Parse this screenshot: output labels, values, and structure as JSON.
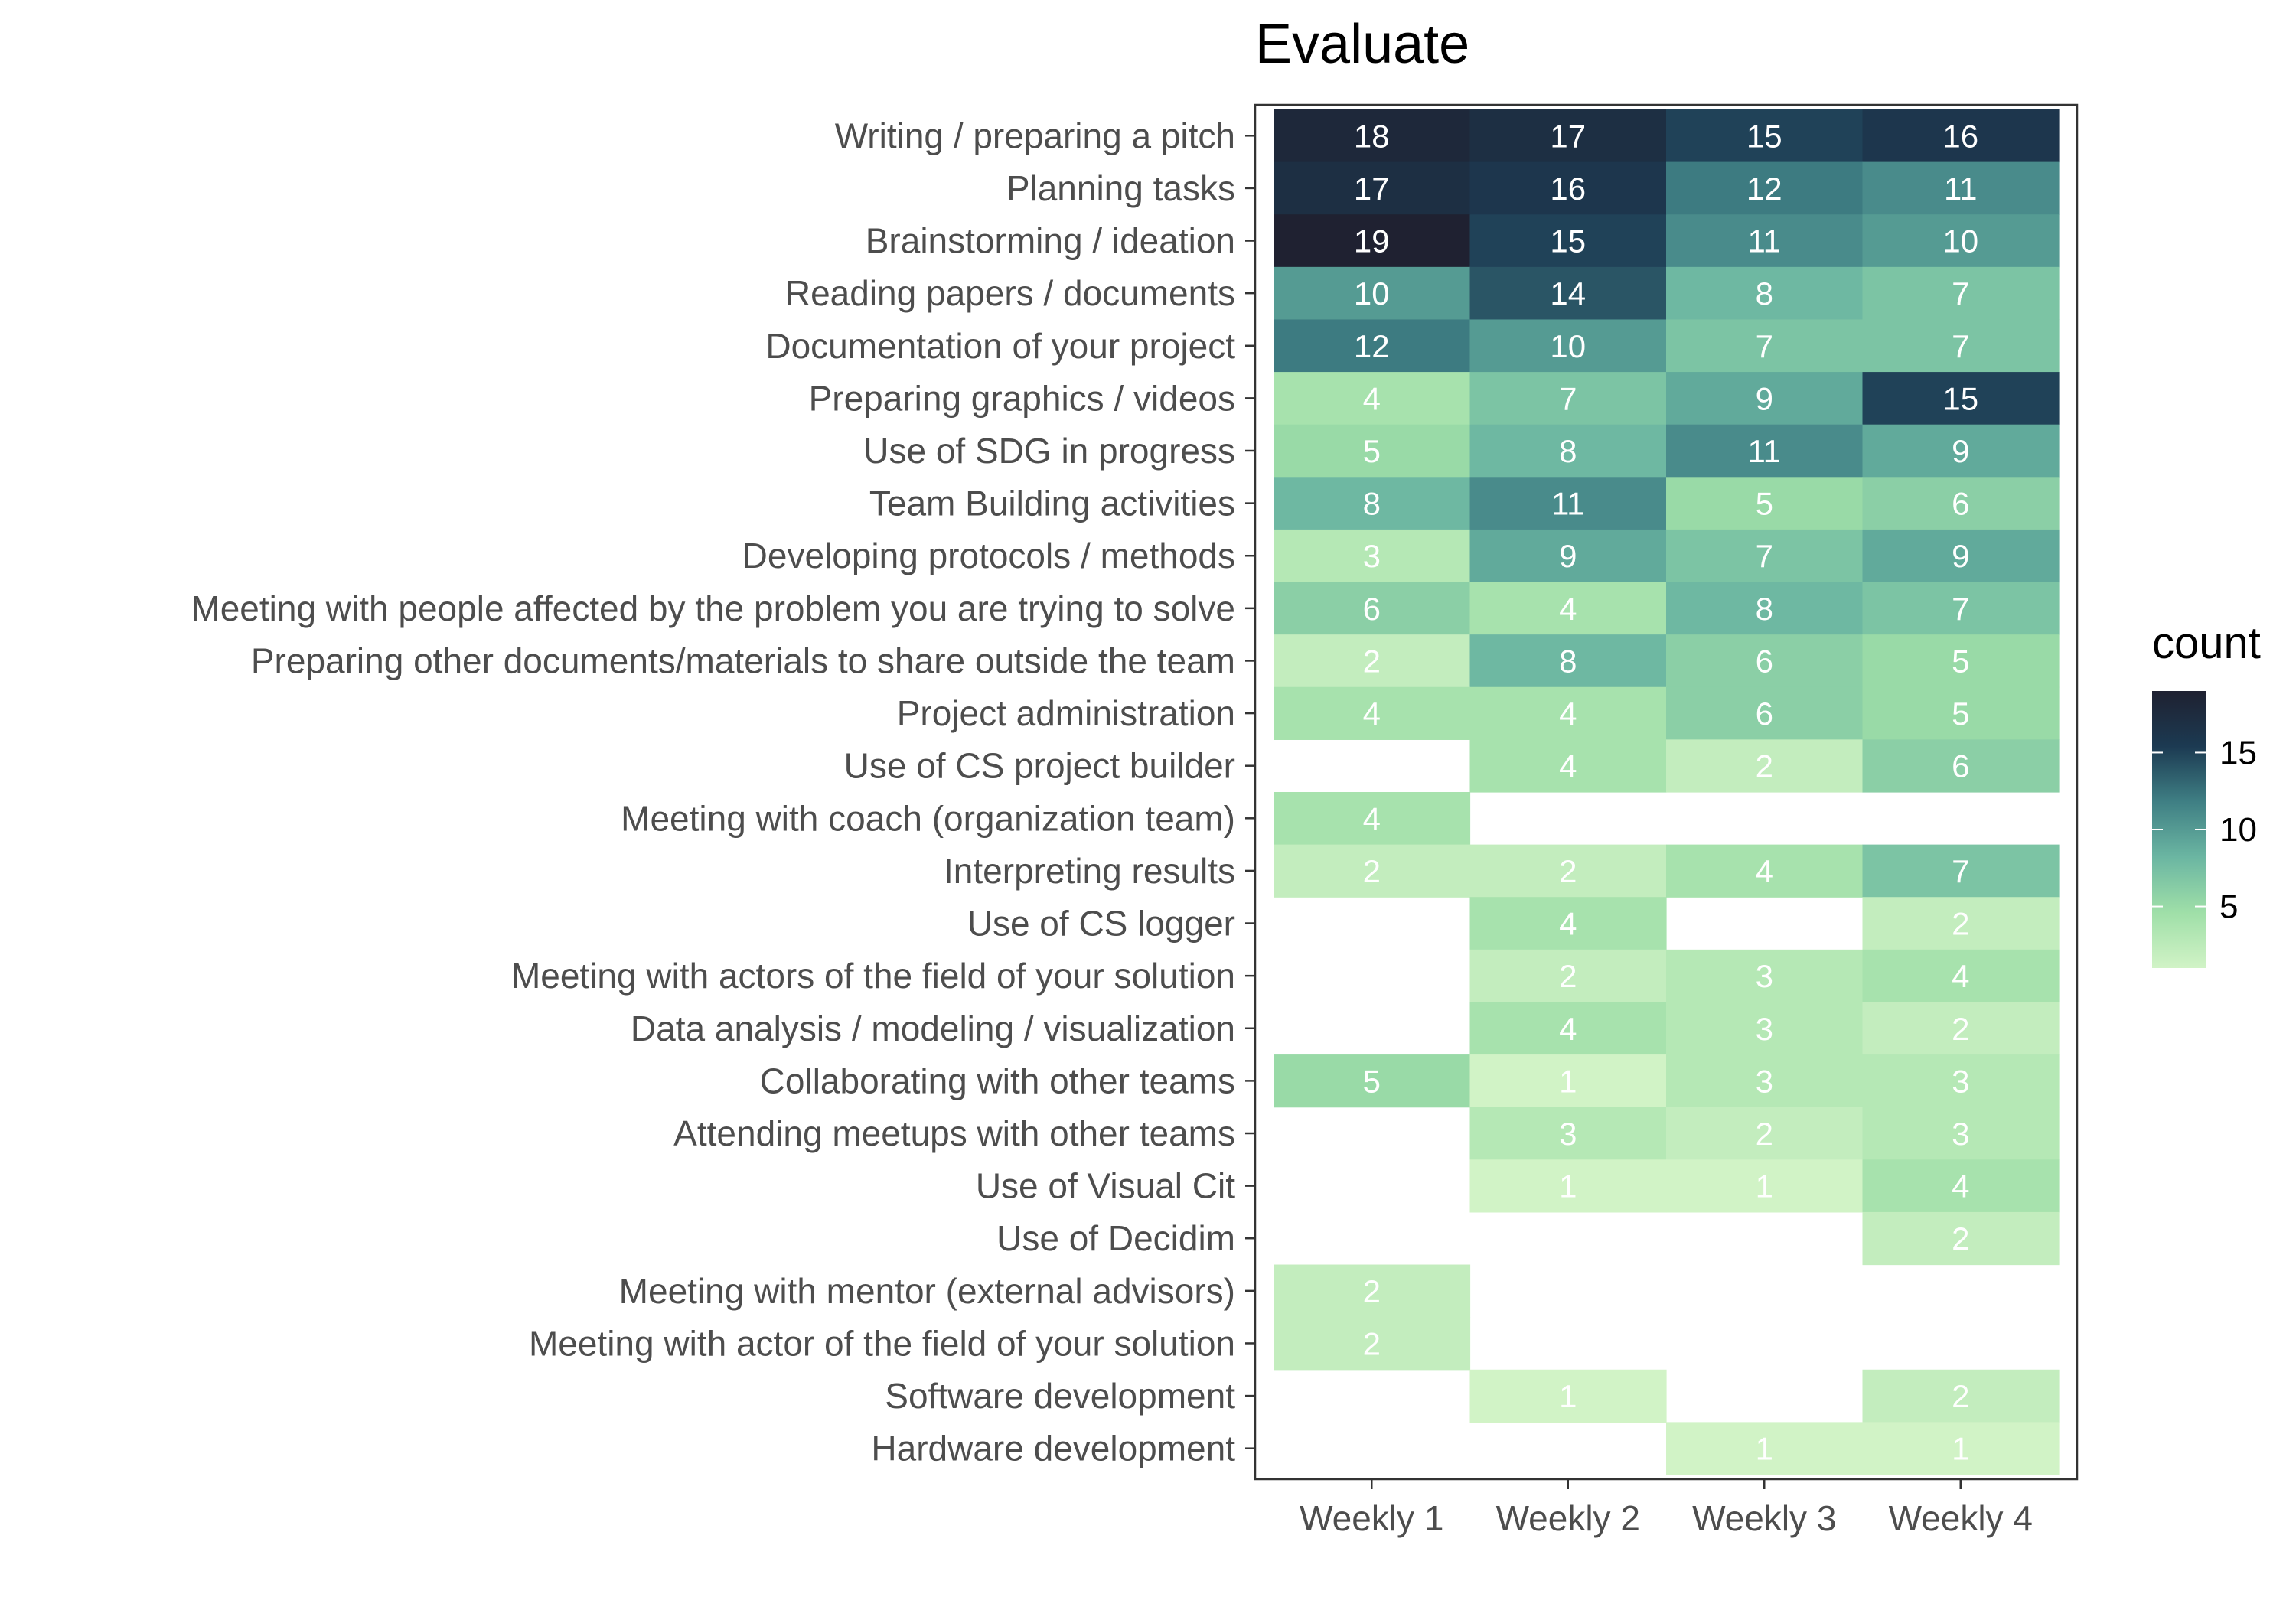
{
  "chart_data": {
    "type": "heatmap",
    "title": "Evaluate",
    "x_categories": [
      "Weekly 1",
      "Weekly 2",
      "Weekly 3",
      "Weekly 4"
    ],
    "y_categories": [
      "Writing  / preparing a pitch",
      "Planning tasks",
      "Brainstorming / ideation",
      "Reading papers / documents",
      "Documentation of your project",
      "Preparing graphics / videos",
      "Use of SDG in progress",
      "Team Building activities",
      "Developing protocols / methods",
      "Meeting with people affected by the problem you are trying to solve",
      "Preparing other documents/materials to share outside the team",
      "Project administration",
      "Use of CS project builder",
      "Meeting with coach (organization team)",
      "Interpreting results",
      "Use of CS logger",
      "Meeting with actors of the field of your solution",
      "Data analysis / modeling / visualization",
      "Collaborating with other teams",
      "Attending meetups with other teams",
      "Use of Visual Cit",
      "Use of Decidim",
      "Meeting with mentor (external advisors)",
      "Meeting with actor of the field of your solution",
      "Software development",
      "Hardware development"
    ],
    "values": [
      [
        18,
        17,
        15,
        16
      ],
      [
        17,
        16,
        12,
        11
      ],
      [
        19,
        15,
        11,
        10
      ],
      [
        10,
        14,
        8,
        7
      ],
      [
        12,
        10,
        7,
        7
      ],
      [
        4,
        7,
        9,
        15
      ],
      [
        5,
        8,
        11,
        9
      ],
      [
        8,
        11,
        5,
        6
      ],
      [
        3,
        9,
        7,
        9
      ],
      [
        6,
        4,
        8,
        7
      ],
      [
        2,
        8,
        6,
        5
      ],
      [
        4,
        4,
        6,
        5
      ],
      [
        null,
        4,
        2,
        6
      ],
      [
        4,
        null,
        null,
        null
      ],
      [
        2,
        2,
        4,
        7
      ],
      [
        null,
        4,
        null,
        2
      ],
      [
        null,
        2,
        3,
        4
      ],
      [
        null,
        4,
        3,
        2
      ],
      [
        5,
        1,
        3,
        3
      ],
      [
        null,
        3,
        2,
        3
      ],
      [
        null,
        1,
        1,
        4
      ],
      [
        null,
        null,
        null,
        2
      ],
      [
        2,
        null,
        null,
        null
      ],
      [
        2,
        null,
        null,
        null
      ],
      [
        null,
        1,
        null,
        2
      ],
      [
        null,
        null,
        1,
        1
      ]
    ],
    "value_range": [
      1,
      19
    ],
    "legend": {
      "title": "count",
      "ticks": [
        "5",
        "10",
        "15"
      ],
      "tick_values": [
        5,
        10,
        15
      ],
      "position": "right"
    },
    "colors": {
      "low": "#d1f3c6",
      "mid_low": "#9fdfa8",
      "mid": "#6bb6a2",
      "mid_high": "#3f7f84",
      "high_mid": "#1c3a52",
      "high": "#1f2131",
      "label_light": "#ffffff",
      "label_dark": "#ffffff"
    },
    "grid": false
  }
}
